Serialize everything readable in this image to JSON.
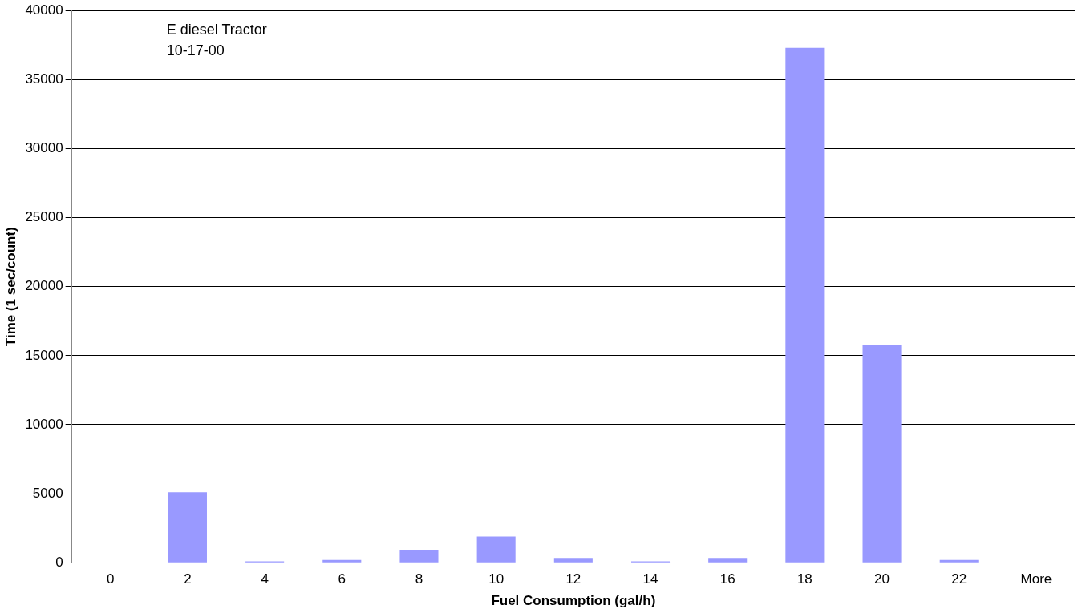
{
  "chart_data": {
    "type": "bar",
    "xlabel": "Fuel Consumption (gal/h)",
    "ylabel": "Time (1 sec/count)",
    "annotations": [
      "E diesel Tractor",
      "10-17-00"
    ],
    "categories": [
      "0",
      "2",
      "4",
      "6",
      "8",
      "10",
      "12",
      "14",
      "16",
      "18",
      "20",
      "22",
      "More"
    ],
    "values": [
      0,
      5100,
      100,
      200,
      900,
      1900,
      350,
      100,
      350,
      37300,
      15750,
      200,
      0
    ],
    "color": "#9999ff",
    "ylim": [
      0,
      40000
    ],
    "yticks": [
      0,
      5000,
      10000,
      15000,
      20000,
      25000,
      30000,
      35000,
      40000
    ],
    "grid": "y",
    "legend": false
  }
}
